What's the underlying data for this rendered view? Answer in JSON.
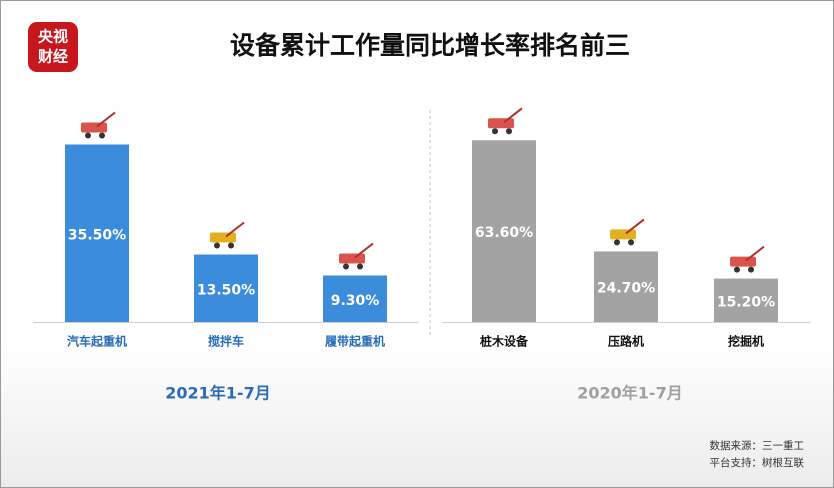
{
  "title": "设备累计工作量同比增长率排名前三",
  "logo": [
    "央视",
    "财经"
  ],
  "source": [
    "数据来源：三一重工",
    "平台支持：树根互联"
  ],
  "chart_data": [
    {
      "type": "bar",
      "subtitle": "2021年1-7月",
      "categories": [
        "汽车起重机",
        "搅拌车",
        "履带起重机"
      ],
      "values": [
        35.5,
        13.5,
        9.3
      ],
      "value_labels": [
        "35.50%",
        "13.50%",
        "9.30%"
      ],
      "color": "#3b8ddb",
      "label_color": "#2a6db5",
      "ylim": [
        0,
        40
      ]
    },
    {
      "type": "bar",
      "subtitle": "2020年1-7月",
      "categories": [
        "桩木设备",
        "压路机",
        "挖掘机"
      ],
      "values": [
        63.6,
        24.7,
        15.2
      ],
      "value_labels": [
        "63.60%",
        "24.70%",
        "15.20%"
      ],
      "color": "#a3a3a3",
      "label_color": "#111111",
      "subtitle_color": "#a0a0a0",
      "ylim": [
        0,
        70
      ]
    }
  ]
}
